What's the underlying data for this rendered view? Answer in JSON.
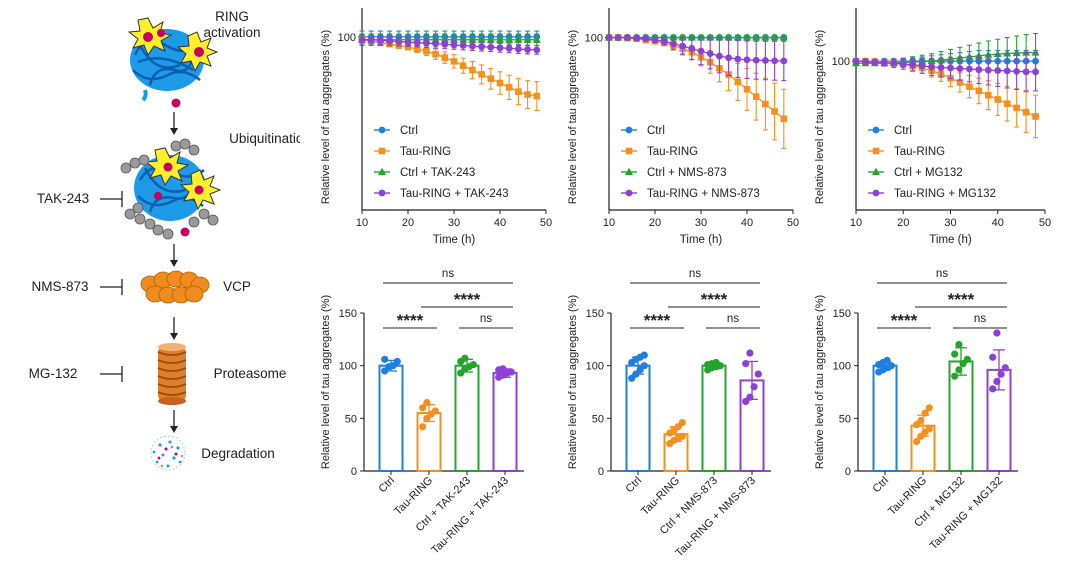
{
  "colors": {
    "ctrl": "#1f7fe0",
    "tau": "#f5901e",
    "ctrl_drug": "#23a52c",
    "tau_drug": "#8e3fd6",
    "axis": "#222222",
    "magenta": "#c8005f",
    "blue_tangle": "#1e9be8",
    "burst": "#ffee2a",
    "grey_ub": "#9a9a9a",
    "vcp": "#f08c1e"
  },
  "diagram": {
    "ring_activation_line1": "RING",
    "ring_activation_line2": "activation",
    "ubiquitination": "Ubiquitination",
    "tak243": "TAK-243",
    "nms873": "NMS-873",
    "vcp": "VCP",
    "mg132": "MG-132",
    "proteasome": "Proteasome",
    "degradation": "Degradation"
  },
  "chart_data": [
    {
      "type": "line",
      "title": "",
      "xlabel": "Time (h)",
      "ylabel": "Relative level of tau aggregates (%)",
      "xlim": [
        10,
        50
      ],
      "xticks": [
        "10",
        "20",
        "30",
        "40",
        "50"
      ],
      "ylim": [
        40,
        110
      ],
      "yticks": [
        "100"
      ],
      "x": [
        10,
        12,
        14,
        16,
        18,
        20,
        22,
        24,
        26,
        28,
        30,
        32,
        34,
        36,
        38,
        40,
        42,
        44,
        46,
        48
      ],
      "series": [
        {
          "name": "Ctrl",
          "color_key": "ctrl",
          "marker": "circle",
          "values": [
            100,
            100,
            100,
            100,
            100,
            100,
            100,
            100,
            100,
            100,
            100,
            100,
            100,
            100,
            100,
            100,
            100,
            100,
            100,
            100
          ],
          "errors": [
            2,
            2,
            2,
            2,
            2,
            2,
            2,
            2,
            2,
            2,
            2,
            2,
            2,
            2,
            2,
            2,
            2,
            2,
            2,
            2
          ]
        },
        {
          "name": "Tau-RING",
          "color_key": "tau",
          "marker": "square",
          "values": [
            99,
            98.5,
            98,
            97.5,
            97,
            96.5,
            95.8,
            95,
            94,
            92.8,
            91.5,
            90,
            88.5,
            87,
            85.5,
            84,
            82.5,
            81,
            80,
            79.5
          ],
          "errors": [
            1,
            1,
            1,
            1,
            1,
            1,
            1.2,
            1.5,
            1.8,
            2,
            2.3,
            2.6,
            3,
            3.3,
            3.6,
            3.9,
            4.2,
            4.5,
            4.8,
            5
          ]
        },
        {
          "name": "Ctrl + TAK-243",
          "color_key": "ctrl_drug",
          "marker": "triangle",
          "values": [
            99,
            99,
            99,
            99,
            99,
            99,
            99,
            99,
            99,
            99,
            99,
            99,
            99,
            99,
            99,
            99,
            99,
            99,
            99,
            99
          ],
          "errors": [
            2,
            2,
            2,
            2,
            2,
            2,
            2,
            2,
            2,
            2,
            2,
            2,
            2,
            2,
            2,
            2,
            2,
            2,
            2,
            2
          ]
        },
        {
          "name": "Tau-RING + TAK-243",
          "color_key": "tau_drug",
          "marker": "circle",
          "values": [
            99,
            99,
            98.8,
            98.6,
            98.4,
            98.2,
            98,
            97.8,
            97.6,
            97.4,
            97.2,
            97,
            96.8,
            96.6,
            96.4,
            96.2,
            96,
            95.8,
            95.6,
            95.5
          ],
          "errors": [
            1.5,
            1.5,
            1.5,
            1.5,
            1.5,
            1.5,
            1.5,
            1.5,
            1.5,
            1.5,
            1.5,
            1.5,
            1.5,
            1.5,
            1.5,
            1.5,
            1.5,
            1.5,
            1.5,
            1.5
          ]
        }
      ],
      "legend": "bottom-left"
    },
    {
      "type": "line",
      "title": "",
      "xlabel": "Time (h)",
      "ylabel": "Relative level of tau aggregates (%)",
      "xlim": [
        10,
        50
      ],
      "xticks": [
        "10",
        "20",
        "30",
        "40",
        "50"
      ],
      "ylim": [
        30,
        112
      ],
      "yticks": [
        "100"
      ],
      "x": [
        10,
        12,
        14,
        16,
        18,
        20,
        22,
        24,
        26,
        28,
        30,
        32,
        34,
        36,
        38,
        40,
        42,
        44,
        46,
        48
      ],
      "series": [
        {
          "name": "Ctrl",
          "color_key": "ctrl",
          "marker": "circle",
          "values": [
            100,
            100,
            100,
            100,
            100,
            100,
            100,
            100,
            100,
            100,
            100,
            100,
            100,
            100,
            100,
            100,
            100,
            100,
            100,
            100
          ],
          "errors": [
            1,
            1,
            1,
            1,
            1,
            1,
            1,
            1,
            1,
            1,
            1,
            1,
            1,
            1,
            1,
            1,
            1,
            1,
            1,
            1
          ]
        },
        {
          "name": "Tau-RING",
          "color_key": "tau",
          "marker": "square",
          "values": [
            100,
            100,
            99.8,
            99.5,
            99,
            98.5,
            97.8,
            96.8,
            95.5,
            94,
            92,
            90,
            87.5,
            85,
            82,
            79,
            76,
            73,
            70,
            67
          ],
          "errors": [
            0.5,
            0.5,
            0.5,
            0.5,
            0.6,
            0.8,
            1,
            1.5,
            2,
            2.8,
            3.5,
            4.5,
            5.5,
            6.5,
            7.5,
            8.5,
            9.5,
            10.5,
            11.5,
            12
          ]
        },
        {
          "name": "Ctrl + NMS-873",
          "color_key": "ctrl_drug",
          "marker": "triangle",
          "values": [
            100,
            100,
            100,
            100,
            100,
            100,
            100,
            100,
            100,
            100,
            100,
            100,
            100,
            100,
            100,
            100,
            100,
            100,
            100,
            100
          ],
          "errors": [
            1,
            1,
            1,
            1,
            1,
            1,
            1,
            1,
            1,
            1,
            1,
            1,
            1,
            1,
            1,
            1,
            1,
            1,
            1,
            1
          ]
        },
        {
          "name": "Tau-RING + NMS-873",
          "color_key": "tau_drug",
          "marker": "circle",
          "values": [
            100,
            100,
            100,
            99.8,
            99.5,
            99,
            98.5,
            97.5,
            96.5,
            95.5,
            94.5,
            93.5,
            92.5,
            91.8,
            91.3,
            91,
            90.8,
            90.7,
            90.6,
            90.5
          ],
          "errors": [
            0.5,
            0.5,
            0.5,
            0.6,
            0.8,
            1,
            1.5,
            2.5,
            3.5,
            4.5,
            5.5,
            6.2,
            6.8,
            7.2,
            7.5,
            7.6,
            7.7,
            7.8,
            7.9,
            8
          ]
        }
      ],
      "legend": "bottom-left"
    },
    {
      "type": "line",
      "title": "",
      "xlabel": "Time (h)",
      "ylabel": "Relative level of tau aggregates (%)",
      "xlim": [
        10,
        50
      ],
      "xticks": [
        "10",
        "20",
        "30",
        "40",
        "50"
      ],
      "ylim": [
        30,
        125
      ],
      "yticks": [
        "100"
      ],
      "x": [
        10,
        12,
        14,
        16,
        18,
        20,
        22,
        24,
        26,
        28,
        30,
        32,
        34,
        36,
        38,
        40,
        42,
        44,
        46,
        48
      ],
      "series": [
        {
          "name": "Ctrl",
          "color_key": "ctrl",
          "marker": "circle",
          "values": [
            100,
            100,
            100,
            100,
            100,
            100,
            100,
            100,
            100,
            100,
            100,
            100,
            100,
            100,
            100,
            100,
            100,
            100,
            100,
            100
          ],
          "errors": [
            1,
            1,
            1,
            1,
            1,
            1,
            1.5,
            2,
            2.5,
            3,
            3.5,
            4,
            4.5,
            5,
            5,
            5,
            5,
            5,
            5,
            5
          ]
        },
        {
          "name": "Tau-RING",
          "color_key": "tau",
          "marker": "square",
          "values": [
            100,
            100,
            99.8,
            99.5,
            99,
            98.5,
            97.8,
            96.8,
            95.5,
            94,
            92,
            90,
            88,
            86,
            84,
            82,
            80,
            78,
            76,
            74
          ],
          "errors": [
            0.5,
            0.5,
            0.5,
            0.8,
            1,
            1.5,
            2,
            2.5,
            3,
            3.5,
            4,
            4.5,
            5.2,
            6,
            6.8,
            7.5,
            8.2,
            9,
            9.5,
            10
          ]
        },
        {
          "name": "Ctrl + MG132",
          "color_key": "ctrl_drug",
          "marker": "triangle",
          "values": [
            99,
            99,
            99,
            99,
            99.2,
            99.4,
            99.6,
            99.8,
            100,
            100.5,
            101,
            101.5,
            102,
            102.5,
            103,
            103.3,
            103.6,
            103.8,
            104,
            104
          ],
          "errors": [
            1,
            1,
            1,
            1,
            1.5,
            2,
            2.5,
            3,
            3.5,
            4,
            4.5,
            5,
            5.5,
            6,
            6.5,
            7,
            7.5,
            8,
            8.5,
            9
          ]
        },
        {
          "name": "Tau-RING + MG132",
          "color_key": "tau_drug",
          "marker": "circle",
          "values": [
            100,
            99.8,
            99.5,
            99.2,
            99,
            98.7,
            98.3,
            97.8,
            97.3,
            97,
            96.8,
            96.5,
            96.3,
            96,
            95.8,
            95.6,
            95.4,
            95.2,
            95,
            95
          ],
          "errors": [
            1,
            1,
            1.2,
            1.5,
            2,
            2.5,
            3,
            3.5,
            4,
            4.5,
            5,
            5.5,
            6,
            6.5,
            7,
            7.5,
            8,
            8.5,
            9,
            9
          ]
        }
      ],
      "legend": "bottom-left"
    },
    {
      "type": "bar",
      "title": "",
      "ylabel": "Relative level of tau aggregates (%)",
      "ylim": [
        0,
        150
      ],
      "yticks": [
        "0",
        "50",
        "100",
        "150"
      ],
      "categories": [
        "Ctrl",
        "Tau-RING",
        "Ctrl + TAK-243",
        "Tau-RING + TAK-243"
      ],
      "color_keys": [
        "ctrl",
        "tau",
        "ctrl_drug",
        "tau_drug"
      ],
      "values": [
        100,
        55,
        100,
        93
      ],
      "errors": [
        5,
        8,
        6,
        4
      ],
      "points": [
        [
          95,
          99,
          100,
          104,
          106
        ],
        [
          42,
          50,
          54,
          57,
          60,
          65
        ],
        [
          93,
          97,
          99,
          101,
          104,
          107
        ],
        [
          89,
          91,
          93,
          94,
          96,
          97
        ]
      ],
      "annotations": [
        {
          "from": 0,
          "to": 1,
          "text": "****",
          "level": 1
        },
        {
          "from": 2,
          "to": 3,
          "text": "ns",
          "level": 1
        },
        {
          "from": 1,
          "to": 3,
          "text": "****",
          "level": 2
        },
        {
          "from": 0,
          "to": 3,
          "text": "ns",
          "level": 3
        }
      ]
    },
    {
      "type": "bar",
      "title": "",
      "ylabel": "Relative level of tau aggregates (%)",
      "ylim": [
        0,
        150
      ],
      "yticks": [
        "0",
        "50",
        "100",
        "150"
      ],
      "categories": [
        "Ctrl",
        "Tau-RING",
        "Ctrl + NMS-873",
        "Tau-RING + NMS-873"
      ],
      "color_keys": [
        "ctrl",
        "tau",
        "ctrl_drug",
        "tau_drug"
      ],
      "values": [
        100,
        35,
        100,
        86
      ],
      "errors": [
        8,
        7,
        3,
        18
      ],
      "points": [
        [
          88,
          92,
          96,
          100,
          103,
          106,
          108,
          110
        ],
        [
          26,
          29,
          31,
          33,
          36,
          39,
          42,
          46
        ],
        [
          96,
          98,
          99,
          100,
          101,
          102,
          103
        ],
        [
          66,
          70,
          80,
          92,
          102,
          112
        ]
      ],
      "annotations": [
        {
          "from": 0,
          "to": 1,
          "text": "****",
          "level": 1
        },
        {
          "from": 2,
          "to": 3,
          "text": "ns",
          "level": 1
        },
        {
          "from": 1,
          "to": 3,
          "text": "****",
          "level": 2
        },
        {
          "from": 0,
          "to": 3,
          "text": "ns",
          "level": 3
        }
      ]
    },
    {
      "type": "bar",
      "title": "",
      "ylabel": "Relative level of tau aggregates (%)",
      "ylim": [
        0,
        150
      ],
      "yticks": [
        "0",
        "50",
        "100",
        "150"
      ],
      "categories": [
        "Ctrl",
        "Tau-RING",
        "Ctrl + MG132",
        "Tau-RING + MG132"
      ],
      "color_keys": [
        "ctrl",
        "tau",
        "ctrl_drug",
        "tau_drug"
      ],
      "values": [
        100,
        43,
        104,
        96
      ],
      "errors": [
        4,
        10,
        13,
        19
      ],
      "points": [
        [
          94,
          96,
          98,
          100,
          101,
          103,
          105
        ],
        [
          28,
          33,
          37,
          40,
          44,
          48,
          55,
          60
        ],
        [
          90,
          96,
          102,
          106,
          111,
          120
        ],
        [
          78,
          85,
          92,
          98,
          108,
          131
        ]
      ],
      "annotations": [
        {
          "from": 0,
          "to": 1,
          "text": "****",
          "level": 1
        },
        {
          "from": 2,
          "to": 3,
          "text": "ns",
          "level": 1
        },
        {
          "from": 1,
          "to": 3,
          "text": "****",
          "level": 2
        },
        {
          "from": 0,
          "to": 3,
          "text": "ns",
          "level": 3
        }
      ]
    }
  ]
}
